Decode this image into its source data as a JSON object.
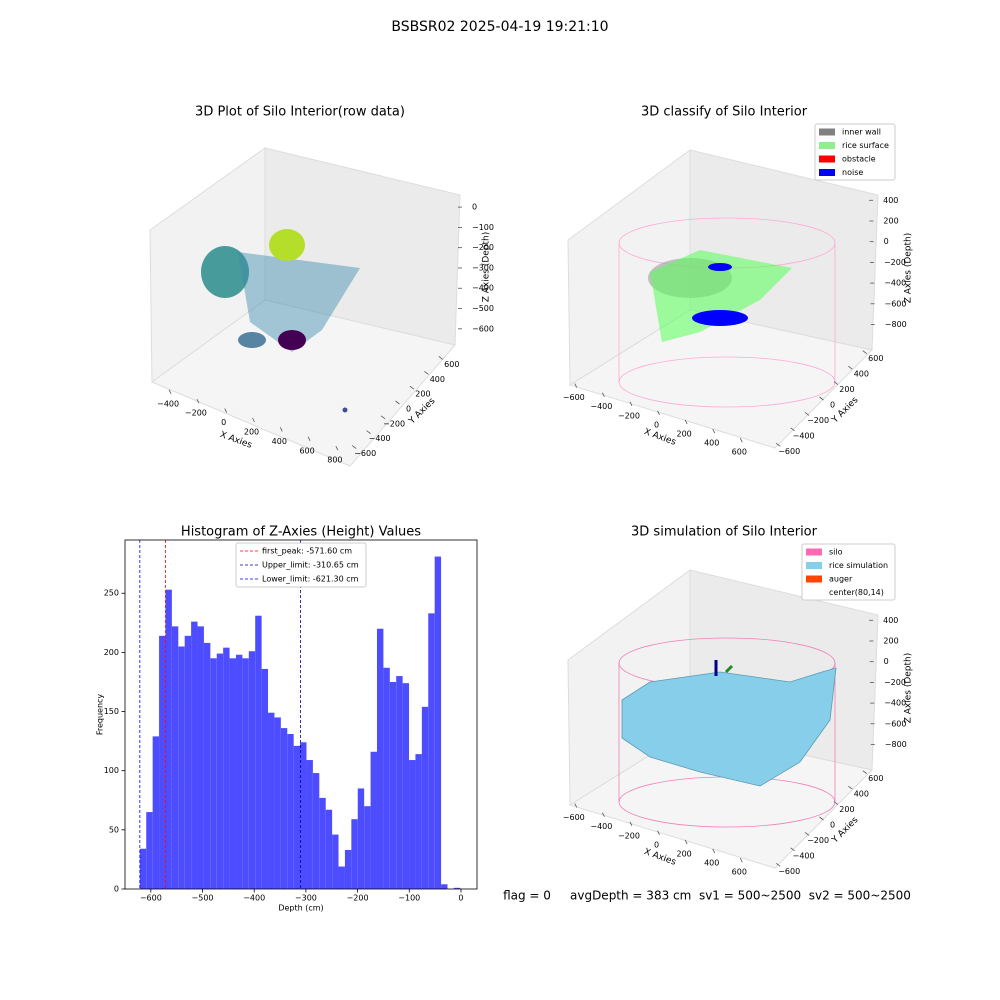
{
  "title": "BSBSR02 2025-04-19 19:21:10",
  "footer": "flag = 0     avgDepth = 383 cm  sv1 = 500~2500  sv2 = 500~2500",
  "chart_data": [
    {
      "type": "scatter3d",
      "title": "3D Plot of Silo Interior(row data)",
      "xlabel": "X Axies",
      "ylabel": "Y Axies",
      "zlabel": "Z Axies (Depth)",
      "xlim": [
        -480,
        880
      ],
      "xticks": [
        {
          "value": -400,
          "label": "−400"
        },
        {
          "value": -200,
          "label": "−200"
        },
        0,
        200,
        400,
        600,
        800
      ],
      "ylim": [
        -700,
        700
      ],
      "yticks": [
        {
          "value": -600,
          "label": "−600"
        },
        {
          "value": -400,
          "label": "−400"
        },
        {
          "value": -200,
          "label": "−200"
        },
        0,
        200,
        400,
        600
      ],
      "zlim": [
        -660,
        30
      ],
      "zticks": [
        0,
        {
          "value": -100,
          "label": "−100"
        },
        {
          "value": -200,
          "label": "−200"
        },
        {
          "value": -300,
          "label": "−300"
        },
        {
          "value": -400,
          "label": "−400"
        },
        {
          "value": -500,
          "label": "−500"
        },
        {
          "value": -600,
          "label": "−600"
        }
      ]
    },
    {
      "type": "scatter3d",
      "title": "3D classify of Silo Interior",
      "xlabel": "X Axies",
      "ylabel": "Y Axies",
      "zlabel": "Z Axies (Depth)",
      "xlim": [
        -700,
        750
      ],
      "xticks": [
        {
          "value": -600,
          "label": "−600"
        },
        {
          "value": -400,
          "label": "−400"
        },
        {
          "value": -200,
          "label": "−200"
        },
        0,
        200,
        400,
        600
      ],
      "ylim": [
        -700,
        700
      ],
      "yticks": [
        {
          "value": -600,
          "label": "−600"
        },
        {
          "value": -400,
          "label": "−400"
        },
        {
          "value": -200,
          "label": "−200"
        },
        0,
        200,
        400,
        600
      ],
      "zlim": [
        -950,
        480
      ],
      "zticks": [
        400,
        200,
        0,
        {
          "value": -200,
          "label": "−200"
        },
        {
          "value": -400,
          "label": "−400"
        },
        {
          "value": -600,
          "label": "−600"
        },
        {
          "value": -800,
          "label": "−800"
        }
      ],
      "legend_loc": "upper right",
      "legend": [
        {
          "name": "inner wall",
          "color": "#808080"
        },
        {
          "name": "rice surface",
          "color": "#90ee90"
        },
        {
          "name": "obstacle",
          "color": "#ff0000"
        },
        {
          "name": "noise",
          "color": "#0000ff"
        }
      ]
    },
    {
      "type": "histogram",
      "title": "Histogram of Z-Axies (Height) Values",
      "xlabel": "Depth (cm)",
      "ylabel": "Frequency",
      "color": "#4d4dff",
      "bins": [
        -621.3,
        -608.9,
        -596.5,
        -584.1,
        -571.7,
        -559.3,
        -546.9,
        -534.5,
        -522.1,
        -509.7,
        -497.3,
        -484.9,
        -472.5,
        -460.1,
        -447.7,
        -435.3,
        -422.9,
        -410.5,
        -398.1,
        -385.7,
        -373.3,
        -360.9,
        -348.5,
        -336.1,
        -323.7,
        -311.3,
        -298.9,
        -286.5,
        -274.1,
        -261.7,
        -249.3,
        -236.9,
        -224.5,
        -212.1,
        -199.7,
        -187.3,
        -174.9,
        -162.5,
        -150.1,
        -137.7,
        -125.3,
        -112.9,
        -100.5,
        -88.1,
        -75.7,
        -63.3,
        -50.9,
        -38.5,
        -26.1,
        -13.7,
        -1.3
      ],
      "values": [
        34,
        65,
        129,
        214,
        253,
        222,
        205,
        214,
        226,
        222,
        208,
        195,
        199,
        204,
        195,
        198,
        195,
        201,
        231,
        186,
        149,
        145,
        136,
        131,
        121,
        124,
        109,
        98,
        77,
        67,
        46,
        19,
        33,
        59,
        85,
        70,
        116,
        220,
        187,
        175,
        180,
        174,
        109,
        114,
        154,
        233,
        281,
        4,
        0,
        1
      ],
      "xlim": [
        -650,
        31
      ],
      "xticks": [
        {
          "value": -600,
          "label": "−600"
        },
        {
          "value": -500,
          "label": "−500"
        },
        {
          "value": -400,
          "label": "−400"
        },
        {
          "value": -300,
          "label": "−300"
        },
        {
          "value": -200,
          "label": "−200"
        },
        {
          "value": -100,
          "label": "−100"
        },
        0
      ],
      "ylim": [
        0,
        295
      ],
      "yticks": [
        0,
        50,
        100,
        150,
        200,
        250
      ],
      "legend_loc": "upper center",
      "lines": [
        {
          "name": "first_peak: -571.60 cm",
          "value": -571.6,
          "color": "#ff0000"
        },
        {
          "name": "Upper_limit: -310.65 cm",
          "value": -310.65,
          "color": "#00008b"
        },
        {
          "name": "Lower_limit: -621.30 cm",
          "value": -621.3,
          "color": "#0000ff"
        }
      ]
    },
    {
      "type": "surface3d",
      "title": "3D simulation of Silo Interior",
      "xlabel": "X Axies",
      "ylabel": "Y Axies",
      "zlabel": "Z Axies (Depth)",
      "xlim": [
        -700,
        750
      ],
      "xticks": [
        {
          "value": -600,
          "label": "−600"
        },
        {
          "value": -400,
          "label": "−400"
        },
        {
          "value": -200,
          "label": "−200"
        },
        0,
        200,
        400,
        600
      ],
      "ylim": [
        -700,
        700
      ],
      "yticks": [
        {
          "value": -600,
          "label": "−600"
        },
        {
          "value": -400,
          "label": "−400"
        },
        {
          "value": -200,
          "label": "−200"
        },
        0,
        200,
        400,
        600
      ],
      "zlim": [
        -950,
        480
      ],
      "zticks": [
        400,
        200,
        0,
        {
          "value": -200,
          "label": "−200"
        },
        {
          "value": -400,
          "label": "−400"
        },
        {
          "value": -600,
          "label": "−600"
        },
        {
          "value": -800,
          "label": "−800"
        }
      ],
      "legend_loc": "upper right",
      "legend": [
        {
          "name": "silo",
          "color": "#ff69b4"
        },
        {
          "name": "rice simulation",
          "color": "#87ceeb"
        },
        {
          "name": "auger",
          "color": "#ff4500"
        },
        {
          "name": "center(80,14)"
        }
      ]
    }
  ]
}
